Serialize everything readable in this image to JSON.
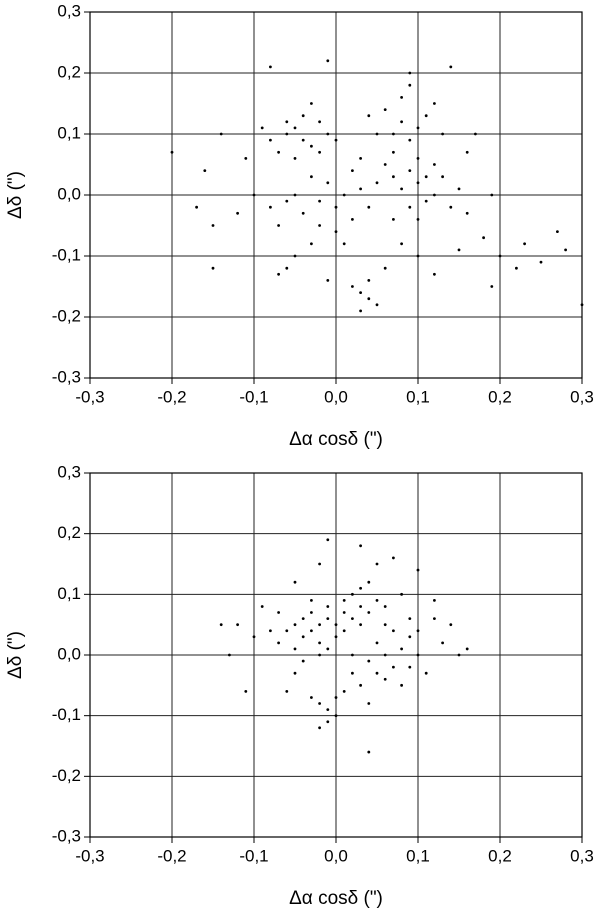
{
  "chart_data": [
    {
      "type": "scatter",
      "xlabel": "Δα cosδ (\")",
      "ylabel": "Δδ (\")",
      "color": "#000000",
      "grid": true,
      "xlim": [
        -0.3,
        0.3
      ],
      "ylim": [
        -0.3,
        0.3
      ],
      "xticks": [
        {
          "value": -0.3,
          "label": "-0,3"
        },
        {
          "value": -0.2,
          "label": "-0,2"
        },
        {
          "value": -0.1,
          "label": "-0,1"
        },
        {
          "value": 0,
          "label": "0,0"
        },
        {
          "value": 0.1,
          "label": "0,1"
        },
        {
          "value": 0.2,
          "label": "0,2"
        },
        {
          "value": 0.3,
          "label": "0,3"
        }
      ],
      "yticks": [
        {
          "value": -0.3,
          "label": "-0,3"
        },
        {
          "value": -0.2,
          "label": "-0,2"
        },
        {
          "value": -0.1,
          "label": "-0,1"
        },
        {
          "value": 0,
          "label": "0,0"
        },
        {
          "value": 0.1,
          "label": "0,1"
        },
        {
          "value": 0.2,
          "label": "0,2"
        },
        {
          "value": 0.3,
          "label": "0,3"
        }
      ],
      "x": [
        -0.04,
        -0.05,
        -0.03,
        -0.06,
        -0.02,
        -0.07,
        -0.04,
        -0.01,
        -0.05,
        -0.08,
        -0.03,
        -0.06,
        -0.09,
        -0.02,
        0.0,
        0.07,
        0.08,
        0.09,
        0.06,
        0.1,
        0.08,
        0.05,
        0.11,
        0.07,
        0.12,
        0.09,
        0.1,
        0.06,
        0.13,
        0.04,
        0.0,
        -0.02,
        0.01,
        -0.04,
        0.02,
        -0.01,
        0.03,
        -0.06,
        0.0,
        -0.03,
        0.04,
        -0.08,
        -0.05,
        0.01,
        -0.1,
        -0.12,
        0.02,
        -0.02,
        0.05,
        -0.07,
        0.1,
        0.12,
        0.09,
        0.11,
        0.13,
        0.08,
        0.14,
        0.1,
        0.15,
        0.07,
        0.12,
        0.16,
        0.11,
        0.09,
        0.04,
        0.03,
        0.05,
        0.02,
        0.04,
        0.03,
        0.2,
        0.23,
        0.25,
        0.28,
        0.22,
        0.27,
        0.3,
        0.18,
        0.19,
        -0.17,
        -0.15,
        -0.2,
        -0.15,
        -0.14,
        -0.16,
        -0.06,
        -0.05,
        -0.07,
        0.08,
        0.1,
        0.06,
        0.12,
        -0.01,
        0.15,
        -0.11,
        0.14,
        0.09,
        -0.01,
        -0.08,
        0.17,
        0.16,
        0.19,
        0.07,
        -0.03,
        0.03
      ],
      "y": [
        0.09,
        0.11,
        0.08,
        0.1,
        0.12,
        0.07,
        0.13,
        0.1,
        0.06,
        0.09,
        0.15,
        0.12,
        0.11,
        0.07,
        0.09,
        0.1,
        0.12,
        0.09,
        0.14,
        0.11,
        0.16,
        0.1,
        0.13,
        0.07,
        0.15,
        0.18,
        0.06,
        0.05,
        0.1,
        0.13,
        -0.02,
        -0.01,
        0.0,
        -0.03,
        -0.04,
        0.02,
        0.01,
        -0.01,
        -0.06,
        0.03,
        -0.02,
        -0.02,
        0.0,
        -0.08,
        0.0,
        -0.03,
        0.04,
        -0.05,
        0.02,
        -0.05,
        0.02,
        0.0,
        0.04,
        -0.01,
        0.03,
        0.01,
        -0.02,
        -0.04,
        0.01,
        0.03,
        0.05,
        -0.03,
        0.03,
        -0.02,
        -0.17,
        -0.16,
        -0.18,
        -0.15,
        -0.14,
        -0.19,
        -0.1,
        -0.08,
        -0.11,
        -0.09,
        -0.12,
        -0.06,
        -0.18,
        -0.07,
        -0.15,
        -0.02,
        -0.05,
        0.07,
        -0.12,
        0.1,
        0.04,
        -0.12,
        -0.1,
        -0.13,
        -0.08,
        -0.1,
        -0.12,
        -0.13,
        -0.14,
        -0.09,
        0.06,
        0.21,
        0.2,
        0.22,
        0.21,
        0.1,
        0.07,
        0.0,
        -0.04,
        -0.08,
        0.06
      ]
    },
    {
      "type": "scatter",
      "xlabel": "Δα cosδ (\")",
      "ylabel": "Δδ (\")",
      "color": "#000000",
      "grid": true,
      "xlim": [
        -0.3,
        0.3
      ],
      "ylim": [
        -0.3,
        0.3
      ],
      "xticks": [
        {
          "value": -0.3,
          "label": "-0,3"
        },
        {
          "value": -0.2,
          "label": "-0,2"
        },
        {
          "value": -0.1,
          "label": "-0,1"
        },
        {
          "value": 0,
          "label": "0,0"
        },
        {
          "value": 0.1,
          "label": "0,1"
        },
        {
          "value": 0.2,
          "label": "0,2"
        },
        {
          "value": 0.3,
          "label": "0,3"
        }
      ],
      "yticks": [
        {
          "value": -0.3,
          "label": "-0,3"
        },
        {
          "value": -0.2,
          "label": "-0,2"
        },
        {
          "value": -0.1,
          "label": "-0,1"
        },
        {
          "value": 0,
          "label": "0,0"
        },
        {
          "value": 0.1,
          "label": "0,1"
        },
        {
          "value": 0.2,
          "label": "0,2"
        },
        {
          "value": 0.3,
          "label": "0,3"
        }
      ],
      "x": [
        -0.02,
        -0.03,
        -0.01,
        -0.04,
        0.0,
        -0.02,
        -0.05,
        -0.03,
        0.0,
        -0.01,
        -0.06,
        -0.04,
        -0.02,
        0.01,
        -0.07,
        -0.08,
        -0.05,
        -0.03,
        0.01,
        -0.01,
        0.03,
        0.02,
        0.04,
        0.03,
        0.05,
        0.02,
        0.04,
        0.01,
        0.06,
        0.03,
        0.06,
        0.07,
        0.05,
        0.08,
        0.06,
        0.09,
        0.04,
        0.07,
        0.08,
        0.05,
        0.1,
        0.09,
        -0.01,
        0.0,
        -0.02,
        -0.01,
        0.0,
        -0.02,
        0.01,
        -0.03,
        -0.12,
        -0.1,
        -0.13,
        -0.11,
        -0.09,
        -0.14,
        0.12,
        0.13,
        0.15,
        0.11,
        0.14,
        0.12,
        0.1,
        0.07,
        0.03,
        0.05,
        -0.02,
        -0.05,
        -0.05,
        -0.06,
        0.02,
        0.03,
        0.04,
        0.04,
        -0.01,
        0.16,
        0.09,
        0.02,
        -0.07,
        0.08,
        0.1,
        -0.04,
        0.06
      ],
      "y": [
        0.05,
        0.04,
        0.06,
        0.03,
        0.05,
        0.02,
        0.05,
        0.07,
        0.03,
        0.08,
        0.04,
        0.06,
        0.0,
        0.04,
        0.02,
        0.04,
        0.01,
        0.09,
        0.07,
        0.01,
        0.08,
        0.1,
        0.07,
        0.11,
        0.09,
        0.06,
        0.12,
        0.09,
        0.08,
        0.05,
        0.0,
        -0.02,
        0.02,
        0.01,
        -0.04,
        0.03,
        -0.01,
        0.04,
        -0.05,
        -0.03,
        0.0,
        -0.02,
        -0.09,
        -0.1,
        -0.08,
        -0.11,
        -0.07,
        -0.12,
        -0.06,
        -0.07,
        0.05,
        0.03,
        0.0,
        -0.06,
        0.08,
        0.05,
        0.06,
        0.02,
        0.0,
        -0.03,
        0.05,
        0.09,
        0.14,
        0.16,
        0.18,
        0.15,
        0.15,
        0.12,
        -0.03,
        -0.06,
        -0.03,
        -0.05,
        -0.08,
        -0.16,
        0.19,
        0.01,
        0.06,
        0.0,
        0.07,
        0.1,
        0.04,
        -0.01,
        0.05
      ]
    }
  ]
}
